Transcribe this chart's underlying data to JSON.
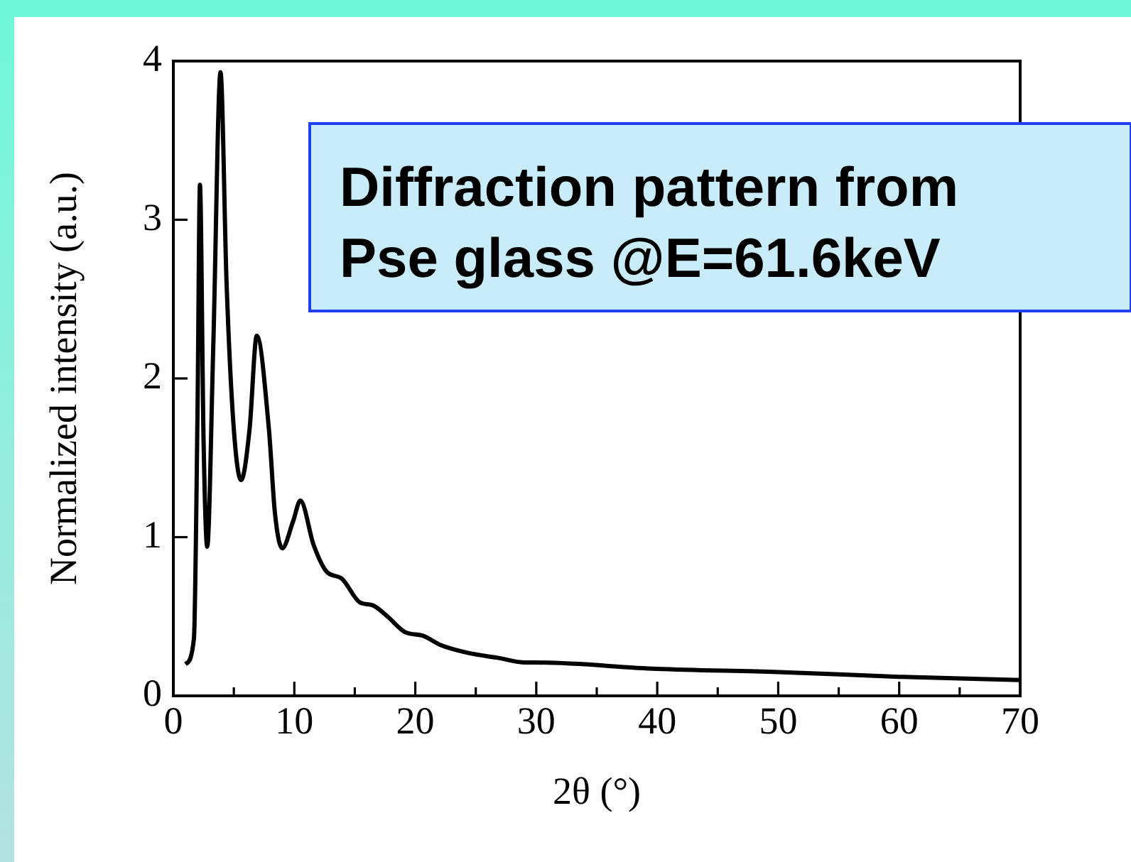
{
  "chart_data": {
    "type": "line",
    "title": "Diffraction pattern from Pse glass @E=61.6keV",
    "xlabel": "2θ (°)",
    "ylabel": "Normalized intensity (a.u.)",
    "x": [
      1.0,
      1.7,
      2.0,
      2.2,
      2.5,
      2.8,
      3.3,
      3.9,
      4.4,
      5.0,
      5.6,
      6.3,
      6.9,
      7.9,
      8.4,
      9.0,
      9.9,
      10.5,
      11.6,
      12.7,
      13.9,
      15.4,
      16.5,
      17.7,
      19.2,
      20.6,
      22.1,
      24.4,
      26.8,
      29.1,
      30,
      40,
      50,
      60,
      70
    ],
    "values": [
      0.2,
      0.36,
      1.8,
      3.22,
      1.6,
      0.94,
      2.2,
      3.93,
      2.6,
      1.68,
      1.36,
      1.68,
      2.27,
      1.68,
      1.15,
      0.93,
      1.1,
      1.23,
      0.95,
      0.78,
      0.74,
      0.59,
      0.57,
      0.5,
      0.4,
      0.38,
      0.32,
      0.27,
      0.24,
      0.21,
      0.21,
      0.17,
      0.15,
      0.12,
      0.1
    ],
    "color": "#000000",
    "marker": "none",
    "line_style": "solid",
    "xlim": [
      0,
      70
    ],
    "xticks": [
      0,
      {
        "value": 5,
        "label": null
      },
      10,
      {
        "value": 15,
        "label": null
      },
      20,
      {
        "value": 25,
        "label": null
      },
      30,
      {
        "value": 35,
        "label": null
      },
      40,
      {
        "value": 45,
        "label": null
      },
      50,
      {
        "value": 55,
        "label": null
      },
      60,
      {
        "value": 65,
        "label": null
      },
      70
    ],
    "ylim": [
      0,
      4
    ],
    "yticks": [
      0,
      1,
      2,
      3,
      4
    ]
  }
}
